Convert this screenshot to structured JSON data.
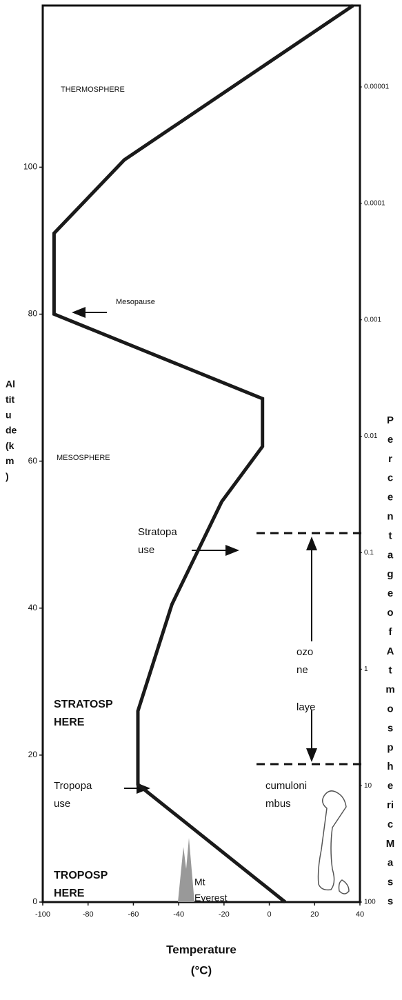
{
  "chart_data": {
    "type": "line",
    "x_label": [
      "Temperature",
      "(°C)"
    ],
    "y_label": [
      "Al",
      "tit",
      "u",
      "de",
      "(k",
      "m",
      ")"
    ],
    "y2_label": [
      "P",
      "e",
      "r",
      "c",
      "e",
      "n",
      "t",
      "a",
      "g",
      "e",
      "o",
      "f",
      "A",
      "t",
      "m",
      "o",
      "s",
      "p",
      "h",
      "e",
      "ri",
      "c",
      "M",
      "a",
      "s",
      "s"
    ],
    "x": [
      7,
      -58,
      -58,
      -43,
      -21,
      -3,
      -3,
      -95,
      -95,
      -64,
      37
    ],
    "values": [
      0,
      16,
      26,
      40.5,
      54.5,
      62,
      68.5,
      80,
      91,
      101,
      122
    ],
    "color": "#1a1a1a",
    "xlim": [
      -100,
      40
    ],
    "xticks": [
      -100,
      -80,
      -60,
      -40,
      -20,
      0,
      20,
      40
    ],
    "ylim": [
      0,
      122
    ],
    "yticks": [
      0,
      20,
      40,
      60,
      80,
      100
    ],
    "y2lim": [
      100,
      2e-06
    ],
    "y2_log": true,
    "y2ticks": [
      100,
      10,
      1,
      0.1,
      0.01,
      0.001,
      0.0001,
      1e-05
    ],
    "annotations": [
      [
        "THERMOSPHERE"
      ],
      [
        "Mesopause"
      ],
      [
        "MESOSPHERE"
      ],
      [
        "Stratopa",
        "use"
      ],
      [
        "STRATOSP",
        "HERE"
      ],
      [
        "Tropopa",
        "use"
      ],
      [
        "TROPOSP",
        "HERE"
      ],
      [
        "ozo",
        "ne",
        "laye"
      ],
      [
        "cumuloni",
        "mbus"
      ],
      [
        "Mt",
        "Everest"
      ]
    ]
  }
}
